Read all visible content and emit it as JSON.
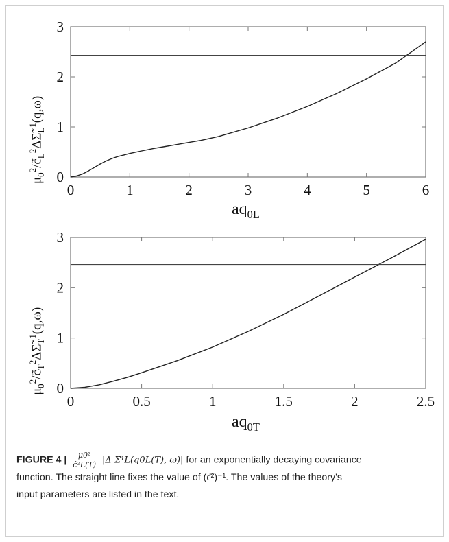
{
  "chart_data": [
    {
      "type": "line",
      "title": "",
      "xlabel": "aq0L",
      "ylabel": "μ0²/c̃L² ΔΣ̃L¹(q,ω)",
      "xlim": [
        0,
        6
      ],
      "ylim": [
        0,
        3
      ],
      "xticks": [
        "0",
        "1",
        "2",
        "3",
        "4",
        "5",
        "6"
      ],
      "yticks": [
        "0",
        "1",
        "2",
        "3"
      ],
      "grid": false,
      "series": [
        {
          "x": [
            0,
            0.1,
            0.2,
            0.3,
            0.4,
            0.5,
            0.6,
            0.7,
            0.8,
            0.9,
            1.0,
            1.2,
            1.4,
            1.6,
            1.8,
            2.0,
            2.2,
            2.5,
            3.0,
            3.5,
            4.0,
            4.5,
            5.0,
            5.5,
            6.0
          ],
          "y": [
            0,
            0.02,
            0.06,
            0.12,
            0.19,
            0.26,
            0.32,
            0.37,
            0.41,
            0.44,
            0.47,
            0.52,
            0.57,
            0.61,
            0.65,
            0.69,
            0.73,
            0.81,
            0.98,
            1.18,
            1.41,
            1.67,
            1.96,
            2.28,
            2.7
          ]
        },
        {
          "x": [
            0,
            6
          ],
          "y": [
            2.43,
            2.43
          ]
        }
      ]
    },
    {
      "type": "line",
      "title": "",
      "xlabel": "aq0T",
      "ylabel": "μ0²/c̃T² ΔΣ̃T¹(q,ω)",
      "xlim": [
        0,
        2.5
      ],
      "ylim": [
        0,
        3
      ],
      "xticks": [
        "0",
        "0.5",
        "1",
        "1.5",
        "2",
        "2.5"
      ],
      "yticks": [
        "0",
        "1",
        "2",
        "3"
      ],
      "grid": false,
      "series": [
        {
          "x": [
            0,
            0.1,
            0.2,
            0.3,
            0.4,
            0.5,
            0.75,
            1.0,
            1.25,
            1.5,
            1.75,
            2.0,
            2.25,
            2.5
          ],
          "y": [
            0,
            0.02,
            0.07,
            0.14,
            0.22,
            0.31,
            0.55,
            0.82,
            1.13,
            1.47,
            1.84,
            2.21,
            2.58,
            2.96
          ]
        },
        {
          "x": [
            0,
            2.5
          ],
          "y": [
            2.46,
            2.46
          ]
        }
      ]
    }
  ],
  "labels": {
    "top_xlabel_main": "aq",
    "top_xlabel_sub": "0L",
    "bottom_xlabel_main": "aq",
    "bottom_xlabel_sub": "0T",
    "top_ylabel_mu": "μ",
    "top_ylabel_sub0": "0",
    "top_ylabel_sup2": "2",
    "top_ylabel_slash_c": "/c̃",
    "top_ylabel_subL": "L",
    "top_ylabel_sup2b": "2",
    "top_ylabel_delta": "ΔΣ̃",
    "top_ylabel_subL2": "L",
    "top_ylabel_sup1": "1",
    "top_ylabel_args": "(q,ω)",
    "bottom_ylabel_mu": "μ",
    "bottom_ylabel_sub0": "0",
    "bottom_ylabel_sup2": "2",
    "bottom_ylabel_slash_c": "/c̃",
    "bottom_ylabel_subT": "T",
    "bottom_ylabel_sup2b": "2",
    "bottom_ylabel_delta": "ΔΣ̃",
    "bottom_ylabel_subT2": "T",
    "bottom_ylabel_sup1": "1",
    "bottom_ylabel_args": "(q,ω)"
  },
  "caption": {
    "figure_label": "FIGURE 4 |",
    "frac_num": "μ0²",
    "frac_den": "c̃²L(T)",
    "expr": "|Δ Σ̃¹L(q0L(T), ω)|",
    "line1_rest": "for an exponentially decaying covariance",
    "line2": "function. The straight line fixes the value of (ϵ̄²)⁻¹. The values of the theory's",
    "line3": "input parameters are listed in the text."
  }
}
